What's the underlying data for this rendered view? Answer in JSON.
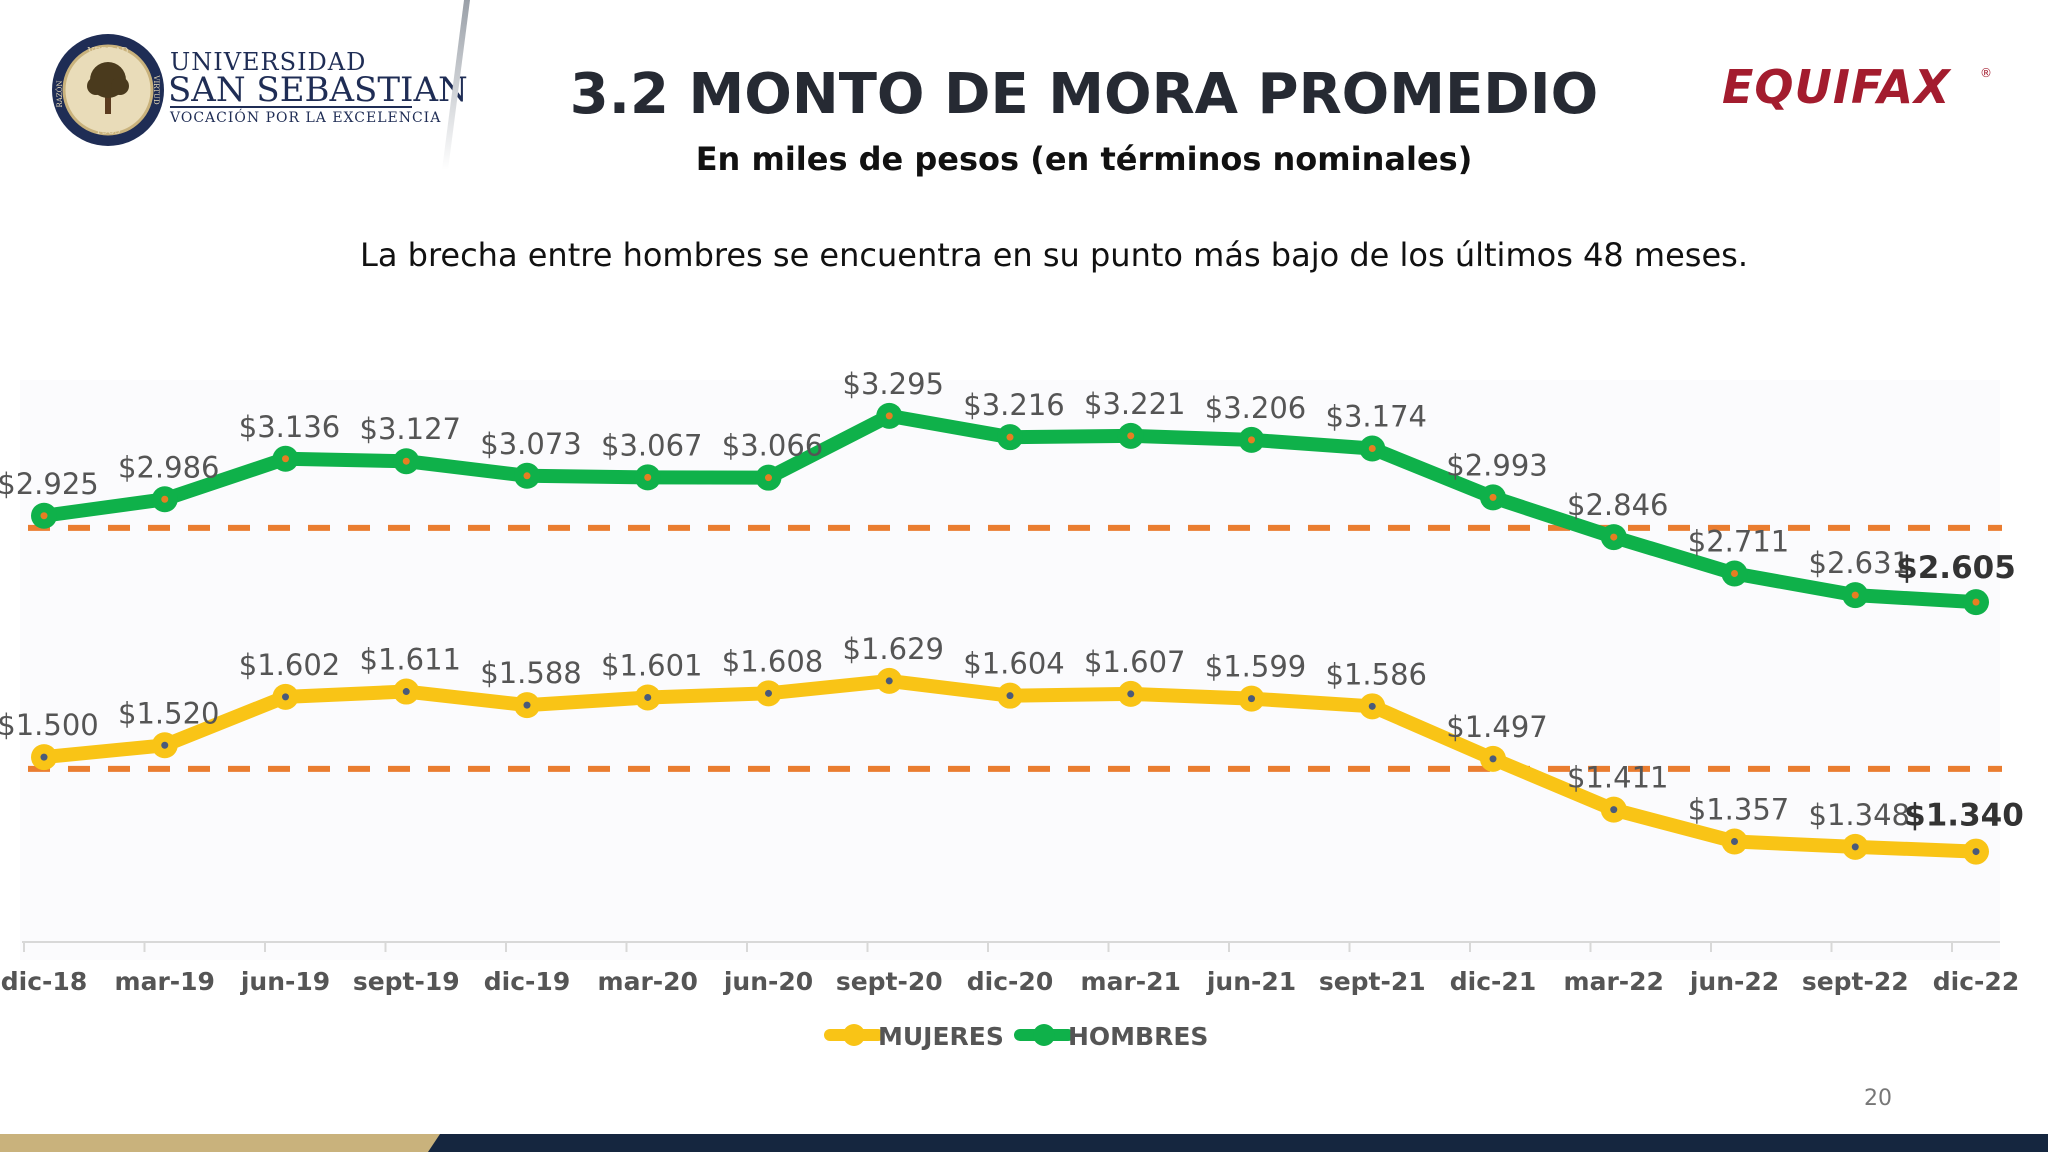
{
  "header": {
    "university": {
      "line1": "UNIVERSIDAD",
      "line2": "SAN SEBASTIAN",
      "line3": "VOCACIÓN POR LA EXCELENCIA",
      "seal_year": "1989",
      "seal_words": [
        "VERDAD",
        "VIRTUD",
        "RAZÓN"
      ]
    },
    "title": "3.2 MONTO DE MORA PROMEDIO",
    "subtitle": "En miles de pesos (en términos nominales)",
    "note": "La brecha entre hombres se encuentra en su punto más bajo de los últimos 48 meses.",
    "brand": "EQUIFAX"
  },
  "page_number": "20",
  "colors": {
    "hombres": "#0fb14a",
    "mujeres": "#f9c416",
    "dashed": "#ea7d30",
    "navy": "#15263f",
    "gold": "#c9b27c"
  },
  "chart_data": {
    "type": "line",
    "categories": [
      "dic-18",
      "mar-19",
      "jun-19",
      "sept-19",
      "dic-19",
      "mar-20",
      "jun-20",
      "sept-20",
      "dic-20",
      "mar-21",
      "jun-21",
      "sept-21",
      "dic-21",
      "mar-22",
      "jun-22",
      "sept-22",
      "dic-22"
    ],
    "series": [
      {
        "name": "MUJERES",
        "values": [
          1.5,
          1.52,
          1.602,
          1.611,
          1.588,
          1.601,
          1.608,
          1.629,
          1.604,
          1.607,
          1.599,
          1.586,
          1.497,
          1.411,
          1.357,
          1.348,
          1.34
        ],
        "labels": [
          "$1.500",
          "$1.520",
          "$1.602",
          "$1.611",
          "$1.588",
          "$1.601",
          "$1.608",
          "$1.629",
          "$1.604",
          "$1.607",
          "$1.599",
          "$1.586",
          "$1.497",
          "$1.411",
          "$1.357",
          "$1.348",
          "$1.340"
        ],
        "reference_line": 1.48
      },
      {
        "name": "HOMBRES",
        "values": [
          2.925,
          2.986,
          3.136,
          3.127,
          3.073,
          3.067,
          3.066,
          3.295,
          3.216,
          3.221,
          3.206,
          3.174,
          2.993,
          2.846,
          2.711,
          2.631,
          2.605
        ],
        "labels": [
          "$2.925",
          "$2.986",
          "$3.136",
          "$3.127",
          "$3.073",
          "$3.067",
          "$3.066",
          "$3.295",
          "$3.216",
          "$3.221",
          "$3.206",
          "$3.174",
          "$2.993",
          "$2.846",
          "$2.711",
          "$2.631",
          "$2.605"
        ],
        "reference_line": 2.88
      }
    ],
    "legend_position": "bottom",
    "last_value_bold": true,
    "grid": false
  }
}
